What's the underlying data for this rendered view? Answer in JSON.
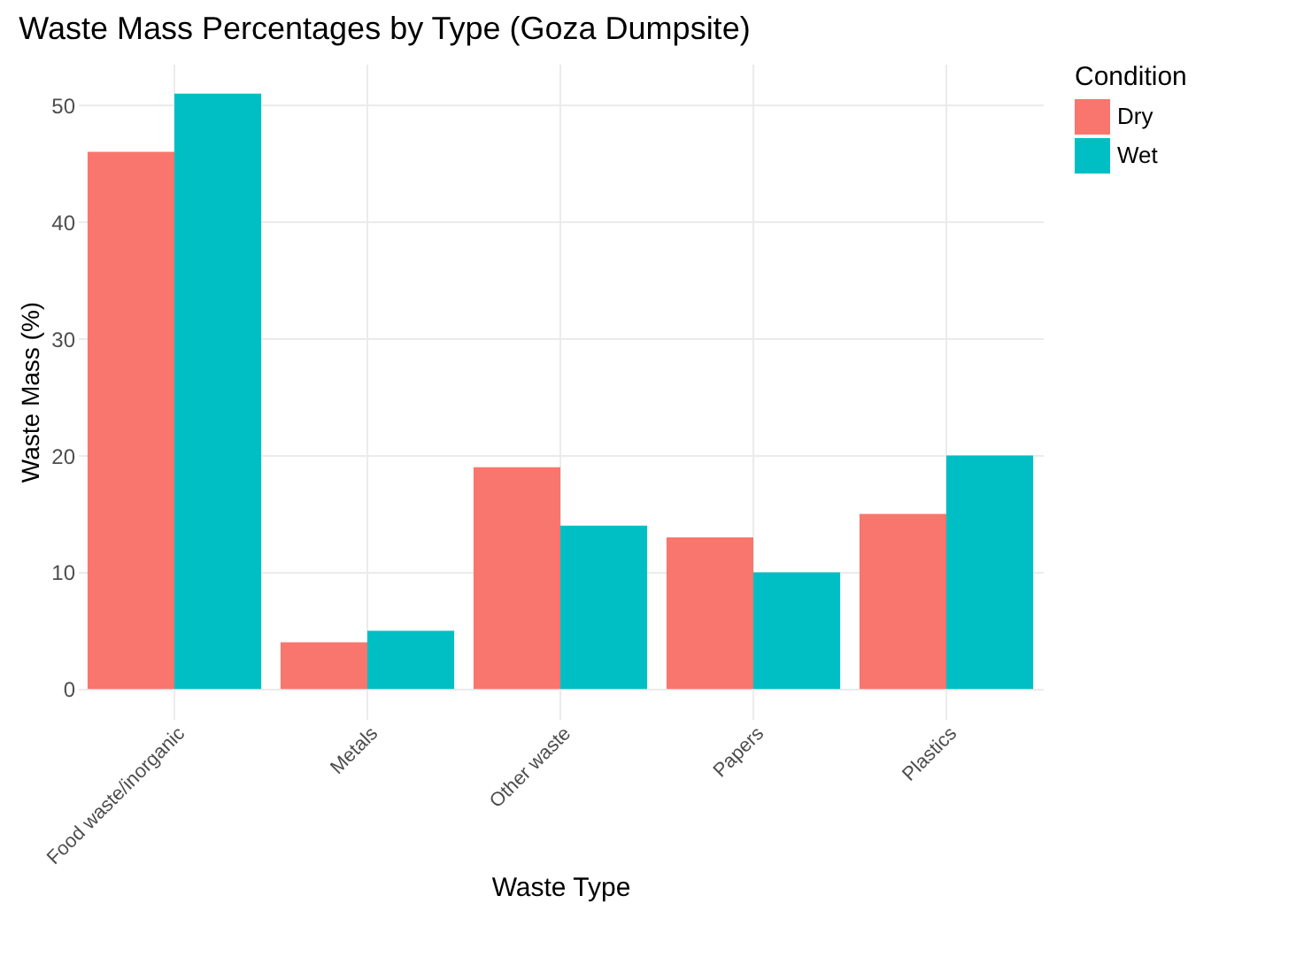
{
  "chart_data": {
    "type": "bar",
    "title": "Waste Mass Percentages by Type (Goza Dumpsite)",
    "xlabel": "Waste Type",
    "ylabel": "Waste Mass (%)",
    "legend_title": "Condition",
    "categories": [
      "Food waste/inorganic",
      "Metals",
      "Other waste",
      "Papers",
      "Plastics"
    ],
    "series": [
      {
        "name": "Dry",
        "color": "#f8766d",
        "values": [
          46,
          4,
          19,
          13,
          15
        ]
      },
      {
        "name": "Wet",
        "color": "#00bfc4",
        "values": [
          51,
          5,
          14,
          10,
          20
        ]
      }
    ],
    "ylim": [
      -2.55,
      53.55
    ],
    "yticks": [
      0,
      10,
      20,
      30,
      40,
      50
    ],
    "grid": true,
    "legend": "right"
  }
}
